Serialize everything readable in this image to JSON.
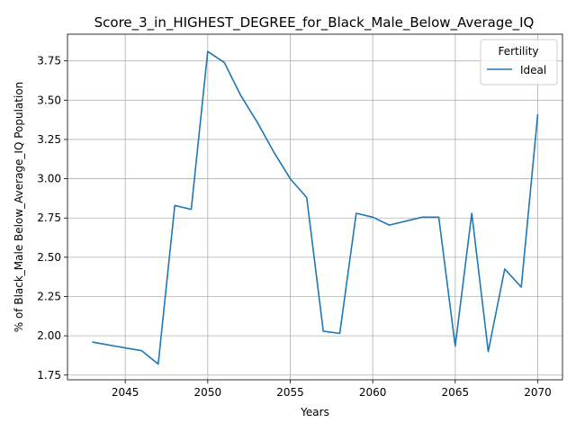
{
  "chart_data": {
    "type": "line",
    "title": "Score_3_in_HIGHEST_DEGREE_for_Black_Male_Below_Average_IQ",
    "xlabel": "Years",
    "ylabel": "% of Black_Male Below_Average_IQ Population",
    "xlim": [
      2041.5,
      2071.5
    ],
    "ylim": [
      1.72,
      3.92
    ],
    "xticks": [
      2045,
      2050,
      2055,
      2060,
      2065,
      2070
    ],
    "yticks": [
      1.75,
      2.0,
      2.25,
      2.5,
      2.75,
      3.0,
      3.25,
      3.5,
      3.75
    ],
    "ytick_labels": [
      "1.75",
      "2.00",
      "2.25",
      "2.50",
      "2.75",
      "3.00",
      "3.25",
      "3.50",
      "3.75"
    ],
    "grid": true,
    "legend": {
      "title": "Fertility",
      "placement": "top-right"
    },
    "series": [
      {
        "name": "Ideal",
        "color": "#1f77b4",
        "x": [
          2043,
          2046,
          2047,
          2048,
          2049,
          2050,
          2051,
          2052,
          2053,
          2054,
          2055,
          2056,
          2057,
          2058,
          2059,
          2060,
          2061,
          2062,
          2063,
          2064,
          2065,
          2066,
          2067,
          2068,
          2069,
          2070
        ],
        "y": [
          1.96,
          1.905,
          1.82,
          2.83,
          2.805,
          3.81,
          3.74,
          3.53,
          3.36,
          3.17,
          3.0,
          2.88,
          2.03,
          2.015,
          2.78,
          2.755,
          2.705,
          2.73,
          2.755,
          2.755,
          1.935,
          2.78,
          1.9,
          2.425,
          2.31,
          3.41
        ]
      }
    ]
  }
}
